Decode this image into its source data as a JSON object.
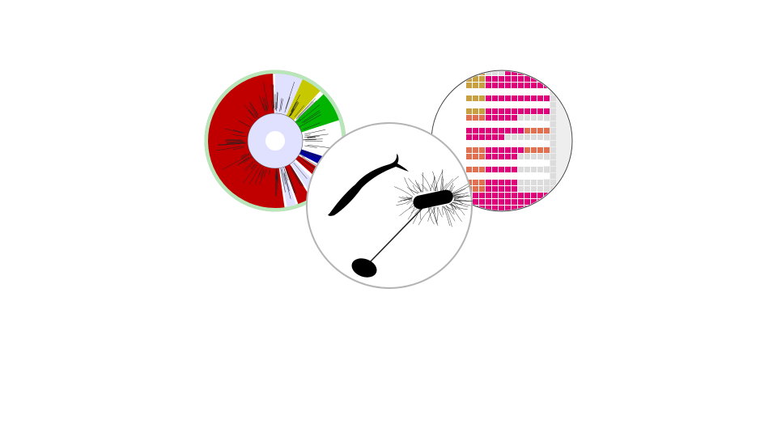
{
  "figure": {
    "panels": [
      {
        "name": "phylogenetic-tree",
        "icon": "circular-tree-icon",
        "clade_colors": [
          "#c00000",
          "#c8c800",
          "#00b400",
          "#0000a0",
          "#e0e0ff",
          "#b8e6b8"
        ]
      },
      {
        "name": "presence-heatmap",
        "icon": "heatmap-icon",
        "cell_colors": [
          "#e0007a",
          "#c8a040",
          "#e07050",
          "#dcdcdc",
          "#ffffff"
        ]
      },
      {
        "name": "organisms",
        "icon": "bacteria-silhouette-icon",
        "silhouettes": [
          "spirillum-bacterium-icon",
          "flagellated-bacterium-icon",
          "piliated-bacterium-icon"
        ]
      }
    ]
  }
}
